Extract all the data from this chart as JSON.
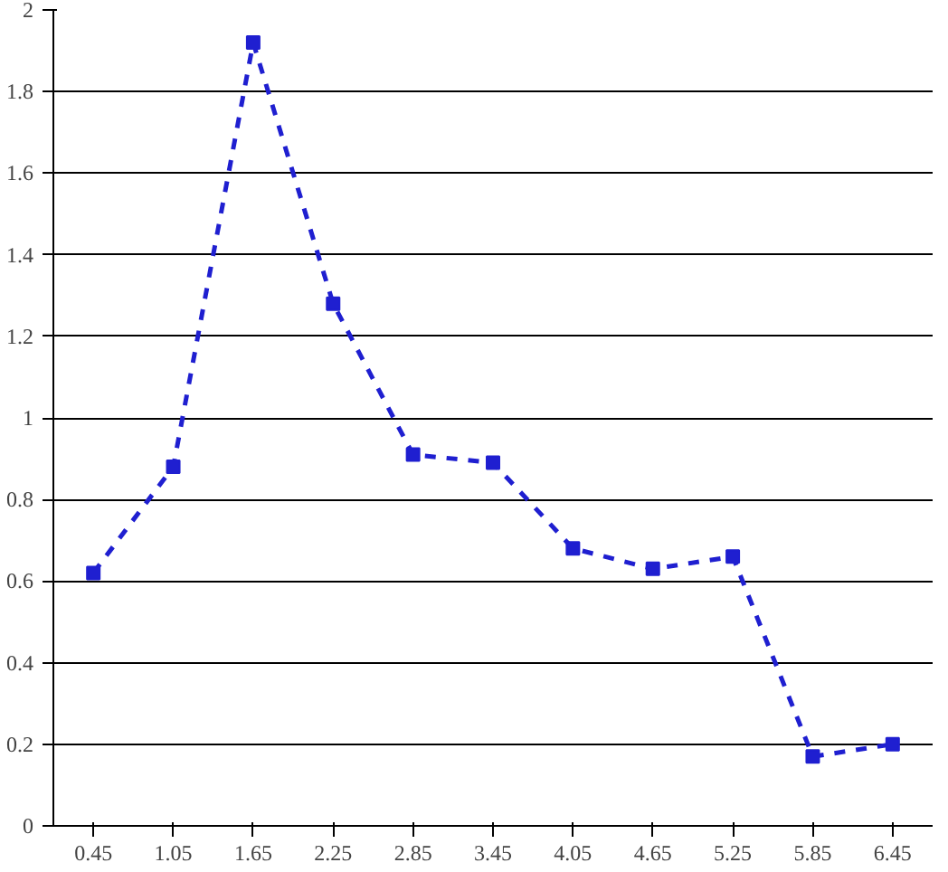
{
  "chart_data": {
    "type": "line",
    "categories": [
      "0.45",
      "1.05",
      "1.65",
      "2.25",
      "2.85",
      "3.45",
      "4.05",
      "4.65",
      "5.25",
      "5.85",
      "6.45"
    ],
    "series": [
      {
        "color": "#1f1fd0",
        "values": [
          0.62,
          0.88,
          1.92,
          1.28,
          0.91,
          0.89,
          0.68,
          0.63,
          0.66,
          0.17,
          0.2
        ]
      }
    ],
    "ylim": [
      0,
      2
    ],
    "yticks": [
      0,
      0.2,
      0.4,
      0.6,
      0.8,
      1,
      1.2,
      1.4,
      1.6,
      1.8,
      2
    ],
    "grid": "y",
    "marker": "square",
    "line_style": "dashed"
  }
}
